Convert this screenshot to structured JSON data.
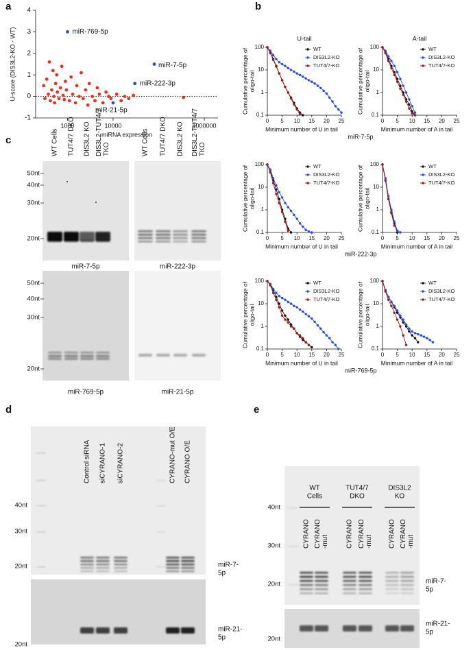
{
  "panel_labels": [
    "a",
    "b",
    "c",
    "d",
    "e"
  ],
  "chart_data": [
    {
      "type": "scatter",
      "x_label": "miRNA expression",
      "y_label": "U-score (DIS3L2-KO - WT)",
      "x_log": true,
      "xlim": [
        200,
        2000000
      ],
      "xticks": [
        1000,
        10000,
        1000000
      ],
      "ylim": [
        -1,
        4
      ],
      "yticks": [
        -1,
        0,
        1,
        2,
        3,
        4
      ],
      "hline": 0,
      "series": [
        {
          "color": "#e8321e",
          "x": [
            300,
            320,
            350,
            380,
            400,
            420,
            450,
            480,
            500,
            520,
            550,
            580,
            600,
            650,
            700,
            750,
            800,
            850,
            900,
            950,
            1100,
            1200,
            1300,
            1500,
            1600,
            1800,
            2000,
            2200,
            2500,
            2800,
            3000,
            3500,
            4000,
            4500,
            5000,
            6000,
            7000,
            8000,
            9000,
            12000,
            15000,
            18000,
            22000,
            28000,
            350000
          ],
          "values": [
            0.5,
            -0.1,
            0.8,
            0.1,
            1.6,
            -0.2,
            0.3,
            1.2,
            0.0,
            -0.3,
            0.6,
            1.0,
            0.2,
            -0.1,
            0.4,
            1.4,
            0.05,
            -0.15,
            0.7,
            0.3,
            -0.2,
            0.9,
            0.1,
            -0.3,
            0.5,
            0.0,
            1.1,
            -0.1,
            0.3,
            -0.4,
            0.6,
            0.0,
            -0.2,
            0.4,
            0.1,
            -0.3,
            0.2,
            0.0,
            -0.1,
            0.1,
            -0.2,
            0.0,
            -0.1,
            0.05,
            -0.05
          ]
        },
        {
          "color": "#2a4bd7",
          "x": [
            1000,
            80000,
            30000,
            10000
          ],
          "values": [
            3.0,
            1.5,
            0.6,
            -0.3
          ],
          "point_labels": [
            "miR-769-5p",
            "miR-7-5p",
            "miR-222-3p",
            "miR-21-5p"
          ]
        }
      ]
    },
    {
      "type": "line",
      "title": "U-tail",
      "x_label": "Minimum number of U in tail",
      "y_label": [
        "Cumulative percentage of",
        "oligo-tail"
      ],
      "y_log": true,
      "xlim": [
        0,
        25
      ],
      "xticks": [
        0,
        5,
        10,
        15,
        20,
        25
      ],
      "ylim": [
        0.1,
        100
      ],
      "yticks": [
        0.1,
        1,
        10,
        100
      ],
      "legend": "upper right",
      "x": [
        0,
        1,
        2,
        3,
        4,
        5,
        6,
        7,
        8,
        9,
        10,
        11,
        12,
        13,
        14,
        15,
        16,
        17,
        18,
        19,
        20,
        21,
        22,
        23,
        24,
        25
      ],
      "series": [
        {
          "name": "WT",
          "color": "#111111",
          "values": [
            100,
            60,
            30,
            15,
            7,
            3.5,
            1.8,
            1,
            0.6,
            0.35,
            0.2,
            0.13,
            0.1,
            null,
            null,
            null,
            null,
            null,
            null,
            null,
            null,
            null,
            null,
            null,
            null,
            null
          ]
        },
        {
          "name": "DIS3L2-KO",
          "color": "#2a4bd7",
          "values": [
            100,
            70,
            45,
            30,
            22,
            18,
            15,
            12,
            10,
            8.5,
            7,
            6,
            5,
            4.2,
            3.5,
            3,
            2.5,
            2,
            1.6,
            1.2,
            0.9,
            0.6,
            0.4,
            0.25,
            0.18,
            0.13
          ]
        },
        {
          "name": "TUT4/7-KO",
          "color": "#a01818",
          "values": [
            100,
            55,
            28,
            14,
            7,
            3.5,
            1.8,
            1,
            0.55,
            0.3,
            0.18,
            0.11,
            null,
            null,
            null,
            null,
            null,
            null,
            null,
            null,
            null,
            null,
            null,
            null,
            null,
            null
          ]
        }
      ]
    },
    {
      "type": "line",
      "title": "A-tail",
      "x_label": "Minimum number of A in tail",
      "y_label": [
        "Cumulative percentage of",
        "oligo-tail"
      ],
      "y_log": true,
      "xlim": [
        0,
        25
      ],
      "xticks": [
        0,
        5,
        10,
        15,
        20,
        25
      ],
      "ylim": [
        0.1,
        100
      ],
      "yticks": [
        0.1,
        1,
        10,
        100
      ],
      "legend": "upper right",
      "x": [
        0,
        1,
        2,
        3,
        4,
        5,
        6,
        7,
        8,
        9,
        10,
        11,
        12,
        13,
        14,
        15,
        16,
        17,
        18,
        19,
        20,
        21,
        22,
        23,
        24,
        25
      ],
      "series": [
        {
          "name": "WT",
          "color": "#111111",
          "values": [
            100,
            60,
            30,
            15,
            8,
            4,
            2,
            1,
            0.5,
            0.3,
            0.15,
            0.1,
            null,
            null,
            null,
            null,
            null,
            null,
            null,
            null,
            null,
            null,
            null,
            null,
            null,
            null
          ]
        },
        {
          "name": "DIS3L2-KO",
          "color": "#2a4bd7",
          "values": [
            100,
            70,
            40,
            25,
            15,
            8,
            4,
            2,
            1,
            0.5,
            0.25,
            0.13,
            null,
            null,
            null,
            null,
            null,
            null,
            null,
            null,
            null,
            null,
            null,
            null,
            null,
            null
          ]
        },
        {
          "name": "TUT4/7-KO",
          "color": "#a01818",
          "values": [
            100,
            55,
            25,
            12,
            6,
            3,
            1.5,
            0.8,
            0.4,
            0.2,
            0.12,
            0.1,
            null,
            null,
            null,
            null,
            null,
            null,
            null,
            null,
            null,
            null,
            null,
            null,
            null,
            null
          ]
        }
      ]
    },
    {
      "type": "line",
      "x_label": "Minimum number of U in tail",
      "y_label": [
        "Cumulative percentage of",
        "oligo-tail"
      ],
      "y_log": true,
      "xlim": [
        0,
        25
      ],
      "xticks": [
        0,
        5,
        10,
        15,
        20,
        25
      ],
      "ylim": [
        0.1,
        100
      ],
      "yticks": [
        0.1,
        1,
        10,
        100
      ],
      "legend": "upper right",
      "x": [
        0,
        1,
        2,
        3,
        4,
        5,
        6,
        7,
        8,
        9,
        10,
        11,
        12,
        13,
        14,
        15,
        16,
        17,
        18,
        19,
        20,
        21,
        22,
        23,
        24,
        25
      ],
      "series": [
        {
          "name": "WT",
          "color": "#111111",
          "values": [
            100,
            50,
            20,
            8,
            3,
            1,
            0.4,
            0.15,
            0.1,
            null,
            null,
            null,
            null,
            null,
            null,
            null,
            null,
            null,
            null,
            null,
            null,
            null,
            null,
            null,
            null,
            null
          ]
        },
        {
          "name": "DIS3L2-KO",
          "color": "#2a4bd7",
          "values": [
            100,
            60,
            25,
            12,
            6,
            3.5,
            2,
            1.3,
            0.9,
            0.6,
            0.4,
            0.25,
            0.18,
            0.13,
            0.11,
            0.1,
            null,
            null,
            null,
            null,
            null,
            null,
            null,
            null,
            null,
            null
          ]
        },
        {
          "name": "TUT4/7-KO",
          "color": "#a01818",
          "values": [
            100,
            45,
            15,
            5,
            2,
            0.8,
            0.3,
            0.12,
            null,
            null,
            null,
            null,
            null,
            null,
            null,
            null,
            null,
            null,
            null,
            null,
            null,
            null,
            null,
            null,
            null,
            null
          ]
        }
      ]
    },
    {
      "type": "line",
      "x_label": "Minimum number of A in tail",
      "y_label": [
        "Cumulative percentage of",
        "oligo-tail"
      ],
      "y_log": true,
      "xlim": [
        0,
        25
      ],
      "xticks": [
        0,
        5,
        10,
        15,
        20,
        25
      ],
      "ylim": [
        0.1,
        100
      ],
      "yticks": [
        0.1,
        1,
        10,
        100
      ],
      "legend": "upper right",
      "x": [
        0,
        1,
        2,
        3,
        4,
        5,
        6,
        7,
        8,
        9,
        10,
        11,
        12,
        13,
        14,
        15,
        16,
        17,
        18,
        19,
        20,
        21,
        22,
        23,
        24,
        25
      ],
      "series": [
        {
          "name": "WT",
          "color": "#111111",
          "values": [
            100,
            20,
            3,
            0.8,
            0.25,
            0.1,
            null,
            null,
            null,
            null,
            null,
            null,
            null,
            null,
            null,
            null,
            null,
            null,
            null,
            null,
            null,
            null,
            null,
            null,
            null,
            null
          ]
        },
        {
          "name": "DIS3L2-KO",
          "color": "#2a4bd7",
          "values": [
            100,
            25,
            4,
            1,
            0.3,
            0.12,
            0.1,
            null,
            null,
            null,
            null,
            null,
            null,
            null,
            null,
            null,
            null,
            null,
            null,
            null,
            null,
            null,
            null,
            null,
            null,
            null
          ]
        },
        {
          "name": "TUT4/7-KO",
          "color": "#a01818",
          "values": [
            100,
            20,
            3,
            0.7,
            0.2,
            null,
            null,
            null,
            null,
            null,
            null,
            null,
            null,
            null,
            null,
            null,
            null,
            null,
            null,
            null,
            null,
            null,
            null,
            null,
            null,
            null
          ]
        }
      ]
    },
    {
      "type": "line",
      "x_label": "Minimum number of U in tail",
      "y_label": [
        "Cumulative percentage of",
        "oligo-tail"
      ],
      "y_log": true,
      "xlim": [
        0,
        25
      ],
      "xticks": [
        0,
        5,
        10,
        15,
        20,
        25
      ],
      "ylim": [
        0.1,
        100
      ],
      "yticks": [
        0.1,
        1,
        10,
        100
      ],
      "legend": "upper right",
      "x": [
        0,
        1,
        2,
        3,
        4,
        5,
        6,
        7,
        8,
        9,
        10,
        11,
        12,
        13,
        14,
        15,
        16,
        17,
        18,
        19,
        20,
        21,
        22,
        23,
        24,
        25
      ],
      "series": [
        {
          "name": "WT",
          "color": "#111111",
          "values": [
            100,
            70,
            40,
            20,
            10,
            5,
            3,
            2,
            1.2,
            0.8,
            0.5,
            0.35,
            0.25,
            0.2,
            0.15,
            0.12,
            null,
            null,
            null,
            null,
            null,
            null,
            null,
            null,
            null,
            null
          ]
        },
        {
          "name": "DIS3L2-KO",
          "color": "#2a4bd7",
          "values": [
            100,
            75,
            45,
            30,
            22,
            18,
            15,
            12,
            10,
            8,
            7,
            5.5,
            4.5,
            3.5,
            2.8,
            2.2,
            1.6,
            1.1,
            0.8,
            0.55,
            0.4,
            0.3,
            0.2,
            0.15,
            0.1,
            null
          ]
        },
        {
          "name": "TUT4/7-KO",
          "color": "#a01818",
          "values": [
            100,
            65,
            30,
            15,
            7,
            3,
            2,
            1.5,
            1,
            0.8,
            0.5,
            0.4,
            0.3,
            0.2,
            0.15,
            null,
            null,
            null,
            null,
            null,
            null,
            null,
            null,
            null,
            null,
            null
          ]
        }
      ]
    },
    {
      "type": "line",
      "x_label": "Minimum number of A in tail",
      "y_label": [
        "Cumulative percentage of",
        "oligo-tail"
      ],
      "y_log": true,
      "xlim": [
        0,
        25
      ],
      "xticks": [
        0,
        5,
        10,
        15,
        20,
        25
      ],
      "ylim": [
        0.1,
        100
      ],
      "yticks": [
        0.1,
        1,
        10,
        100
      ],
      "legend": "upper right",
      "x": [
        0,
        1,
        2,
        3,
        4,
        5,
        6,
        7,
        8,
        9,
        10,
        11,
        12,
        13,
        14,
        15,
        16,
        17,
        18,
        19,
        20,
        21,
        22,
        23,
        24,
        25
      ],
      "series": [
        {
          "name": "WT",
          "color": "#111111",
          "values": [
            100,
            40,
            20,
            12,
            7,
            4,
            2.5,
            1.5,
            1,
            0.6,
            0.4,
            0.3,
            0.2,
            null,
            null,
            null,
            null,
            null,
            null,
            null,
            null,
            null,
            null,
            null,
            null,
            null
          ]
        },
        {
          "name": "DIS3L2-KO",
          "color": "#2a4bd7",
          "values": [
            100,
            40,
            20,
            12,
            8,
            5,
            3,
            2,
            1.2,
            0.8,
            0.6,
            0.5,
            0.45,
            0.4,
            0.35,
            0.3,
            0.25,
            0.2,
            null,
            null,
            null,
            null,
            null,
            null,
            null,
            null
          ]
        },
        {
          "name": "TUT4/7-KO",
          "color": "#a01818",
          "values": [
            100,
            35,
            15,
            8,
            4,
            2,
            1,
            0.4,
            0.15,
            null,
            null,
            null,
            null,
            null,
            null,
            null,
            null,
            null,
            null,
            null,
            null,
            null,
            null,
            null,
            null,
            null
          ]
        }
      ]
    }
  ],
  "b_row_labels": [
    "miR-7-5p",
    "miR-222-3p",
    "miR-769-5p"
  ],
  "panel_c": {
    "lanes_left": [
      [
        "WT Cells"
      ],
      [
        "TUT4/7 DKO"
      ],
      [
        "DIS3L2 KO"
      ],
      [
        "DIS3L2-TUT4/7",
        "TKO"
      ]
    ],
    "lanes_right": [
      [
        "WT Cells"
      ],
      [
        "TUT4/7 DKO"
      ],
      [
        "DIS3L2 KO"
      ],
      [
        "DIS3L2-TUT4/7",
        "TKO"
      ]
    ],
    "markers_top": [
      "50nt",
      "40nt",
      "30nt",
      "20nt"
    ],
    "markers_bottom": [
      "50nt",
      "40nt",
      "30nt",
      "20nt"
    ],
    "captions": [
      "miR-7-5p",
      "miR-222-3p",
      "miR-769-5p",
      "miR-21-5p"
    ]
  },
  "panel_d": {
    "lanes": [
      [
        "Control siRNA"
      ],
      [
        "siCYRANO-1"
      ],
      [
        "siCYRANO-2"
      ],
      [
        "CYRANO-mut O/E"
      ],
      [
        "CYRANO O/E"
      ]
    ],
    "markers": [
      "40nt",
      "30nt",
      "20nt",
      "20nt"
    ],
    "labels": [
      [
        "miR-7-",
        "5p"
      ],
      [
        "miR-21-",
        "5p"
      ]
    ]
  },
  "panel_e": {
    "groups": [
      [
        "WT",
        "Cells"
      ],
      [
        "TUT4/7",
        "DKO"
      ],
      [
        "DIS3L2",
        "KO"
      ]
    ],
    "lanes": [
      [
        "CYRANO"
      ],
      [
        "CYRANO",
        "-mut"
      ],
      [
        "CYRANO"
      ],
      [
        "CYRANO",
        "-mut"
      ],
      [
        "CYRANO"
      ],
      [
        "CYRANO",
        "-mut"
      ]
    ],
    "markers": [
      "40nt",
      "30nt",
      "20nt",
      "20nt"
    ],
    "labels": [
      [
        "miR-7-",
        "5p"
      ],
      [
        "miR-21-",
        "5p"
      ]
    ]
  }
}
